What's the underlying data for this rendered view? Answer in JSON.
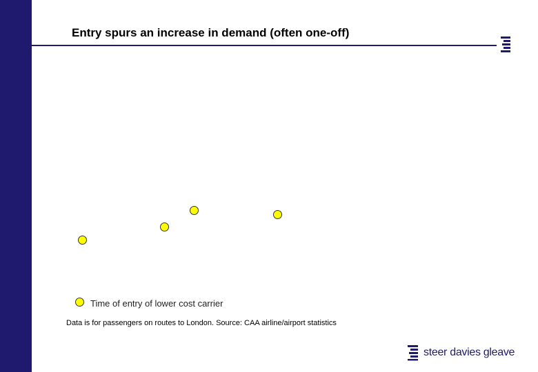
{
  "slide": {
    "title": "Entry spurs an increase in demand (often one-off)",
    "legend_label": "Time of entry of lower cost carrier",
    "footnote": "Data is for passengers on routes to London. Source: CAA airline/airport statistics",
    "brand_name": "steer davies gleave"
  },
  "colors": {
    "sidebar": "#1f1a6e",
    "marker_fill": "#ffff00",
    "marker_stroke": "#333333",
    "brand": "#1f1a6e"
  },
  "icons": {
    "corner_logo": "sdg-logo-icon",
    "brand_mark": "sdg-logo-icon",
    "marker": "circle-marker-icon"
  }
}
